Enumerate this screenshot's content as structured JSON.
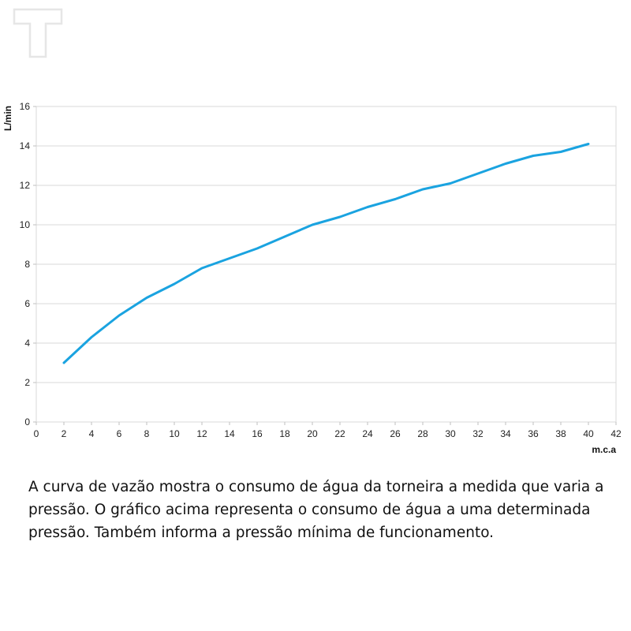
{
  "logo": {
    "icon": "t-logo-icon",
    "color": "#e6e6e6"
  },
  "chart_data": {
    "type": "line",
    "title": "",
    "xlabel": "m.c.a",
    "ylabel": "L/min",
    "xlim": [
      0,
      42
    ],
    "ylim": [
      0,
      16
    ],
    "xticks": [
      0,
      2,
      4,
      6,
      8,
      10,
      12,
      14,
      16,
      18,
      20,
      22,
      24,
      26,
      28,
      30,
      32,
      34,
      36,
      38,
      40,
      42
    ],
    "yticks": [
      0,
      2,
      4,
      6,
      8,
      10,
      12,
      14,
      16
    ],
    "grid": "horizontal",
    "legend": "none",
    "line_color": "#1aa3e0",
    "grid_color": "#d9d9d9",
    "series": [
      {
        "x": [
          2,
          4,
          6,
          8,
          10,
          12,
          14,
          16,
          18,
          20,
          22,
          24,
          26,
          28,
          30,
          32,
          34,
          36,
          38,
          40
        ],
        "y": [
          3.0,
          4.3,
          5.4,
          6.3,
          7.0,
          7.8,
          8.3,
          8.8,
          9.4,
          10.0,
          10.4,
          10.9,
          11.3,
          11.8,
          12.1,
          12.6,
          13.1,
          13.5,
          13.7,
          14.1
        ]
      }
    ]
  },
  "caption": "A curva de vazão mostra o consumo de água da torneira a medida que varia a pressão. O gráfico acima representa o consumo de água a uma determinada pressão. Também informa a pressão mínima de funcionamento."
}
